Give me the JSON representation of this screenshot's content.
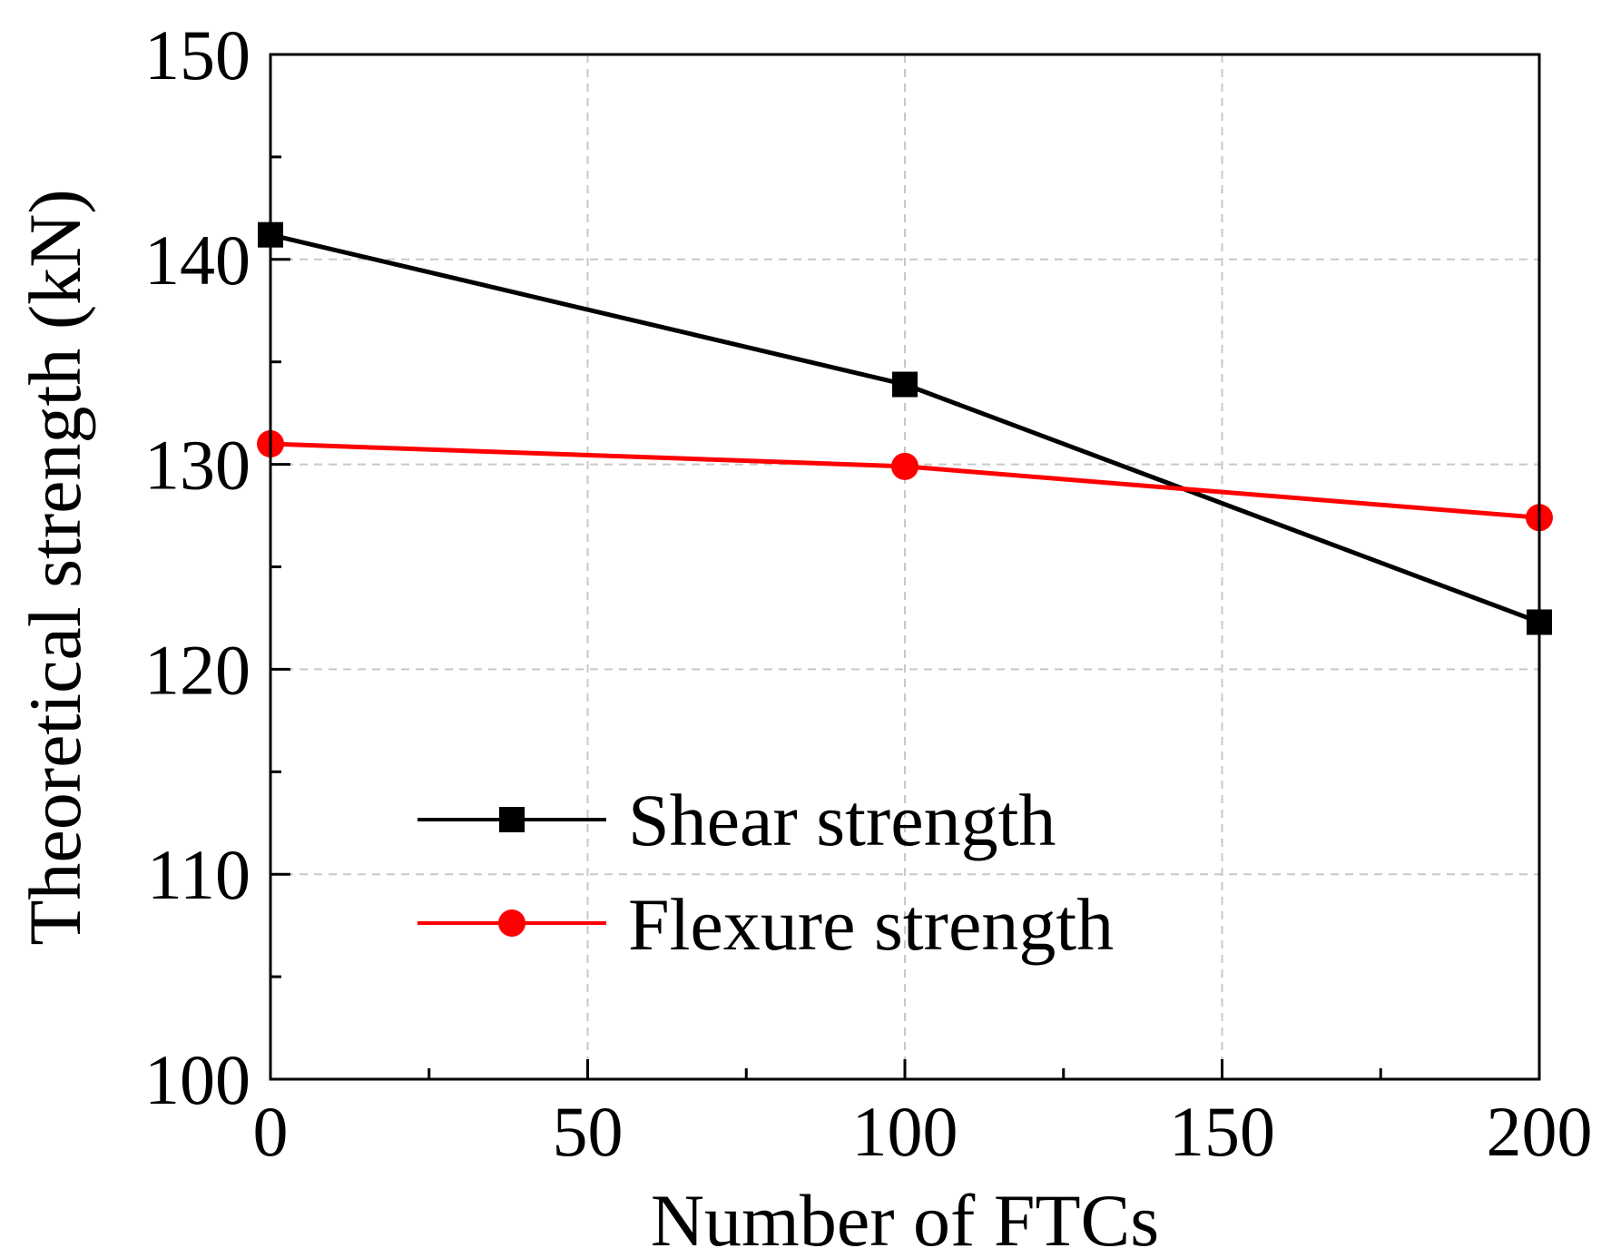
{
  "chart_data": {
    "type": "line",
    "title": "",
    "xlabel": "Number of FTCs",
    "ylabel": "Theoretical strength (kN)",
    "xlim": [
      0,
      200
    ],
    "ylim": [
      100,
      150
    ],
    "xticks": [
      0,
      50,
      100,
      150,
      200
    ],
    "xtick_labels": [
      "0",
      "50",
      "100",
      "150",
      "200"
    ],
    "yticks": [
      100,
      110,
      120,
      130,
      140,
      150
    ],
    "ytick_labels": [
      "100",
      "110",
      "120",
      "130",
      "140",
      "150"
    ],
    "x_minor_step": 25,
    "y_minor_step": 5,
    "grid": true,
    "legend_position": "lower-left",
    "series": [
      {
        "name": "Shear strength",
        "marker": "square",
        "color": "#000000",
        "x": [
          0,
          100,
          200
        ],
        "values": [
          141.2,
          133.9,
          122.3
        ]
      },
      {
        "name": "Flexure strength",
        "marker": "circle",
        "color": "#ff0000",
        "x": [
          0,
          100,
          200
        ],
        "values": [
          131.0,
          129.9,
          127.4
        ]
      }
    ]
  }
}
